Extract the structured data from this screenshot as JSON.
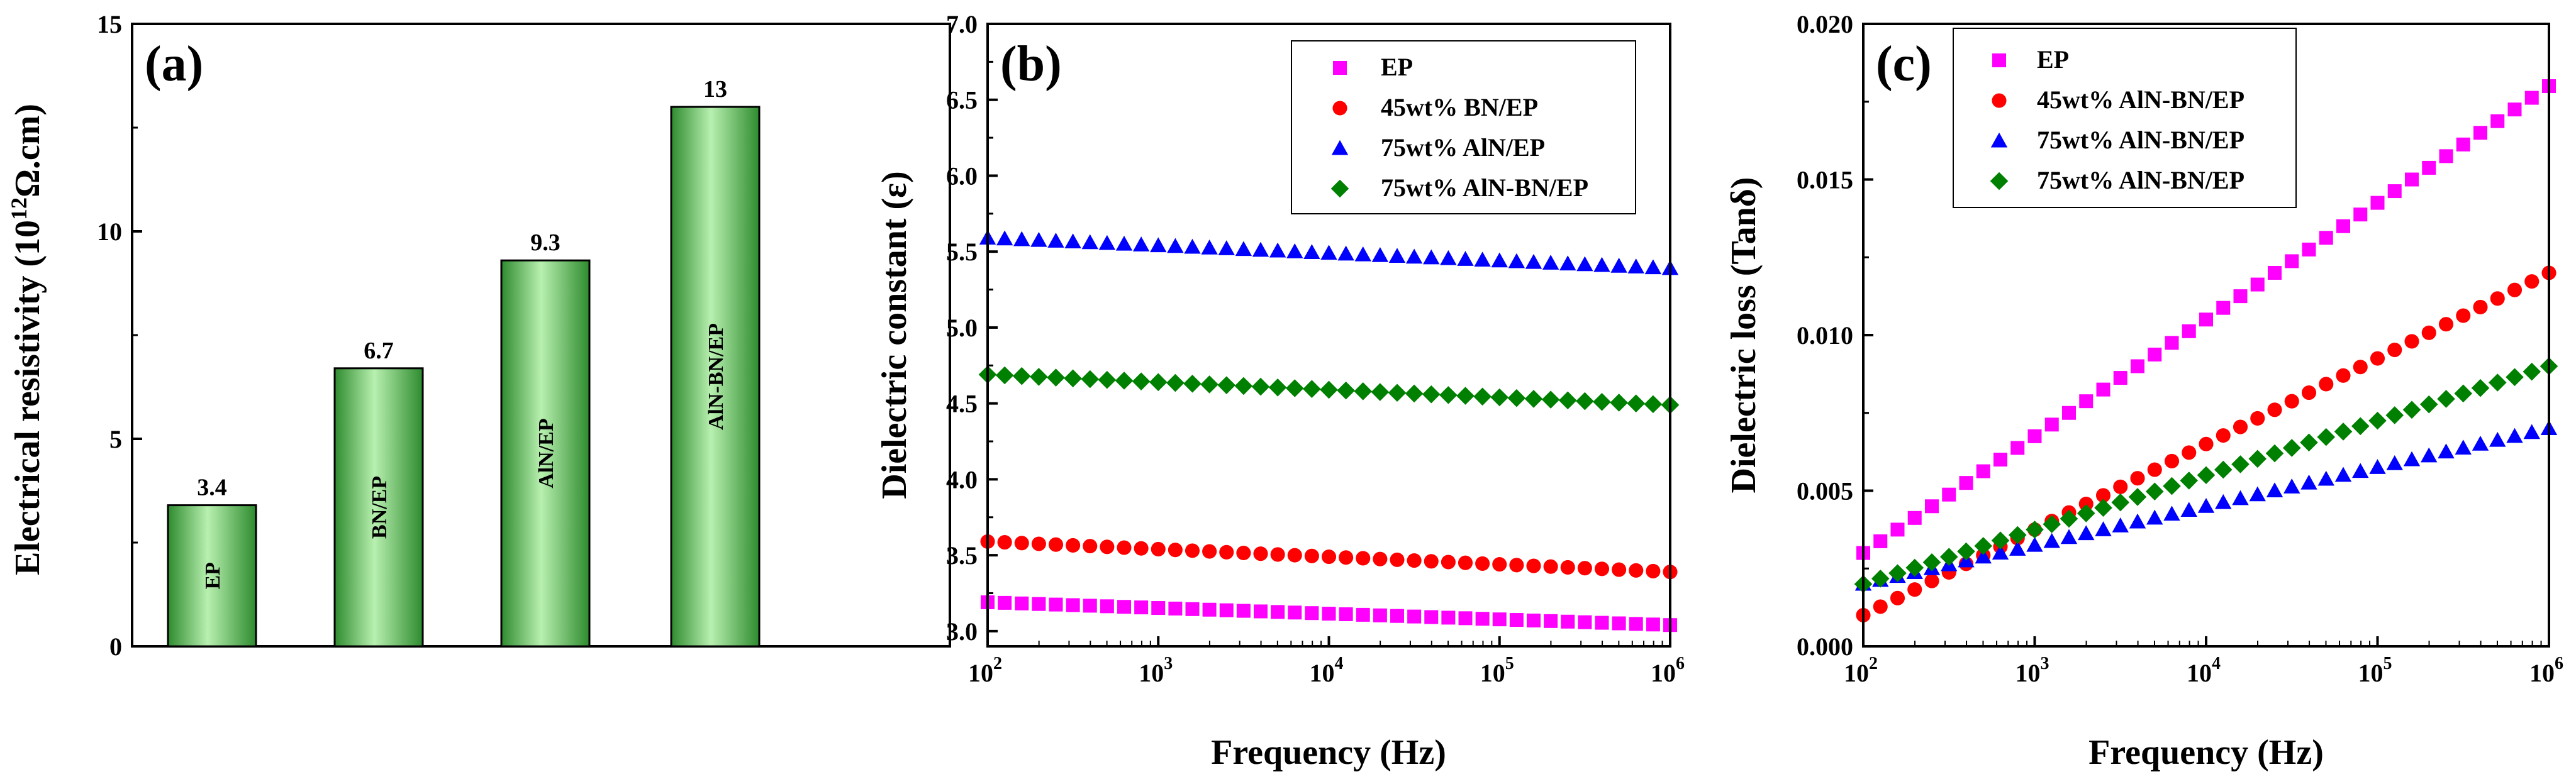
{
  "chart_data": [
    {
      "panel": "(a)",
      "type": "bar",
      "ylabel_main": "Electrical resistivity (10",
      "ylabel_exp": "12",
      "ylabel_unit": "Ω.cm)",
      "categories": [
        "EP",
        "BN/EP",
        "AlN/EP",
        "AlN-BN/EP"
      ],
      "values": [
        3.4,
        6.7,
        9.3,
        13
      ],
      "value_labels": [
        "3.4",
        "6.7",
        "9.3",
        "13"
      ],
      "ylim": [
        0,
        15
      ],
      "yticks": [
        "0",
        "5",
        "10",
        "15"
      ],
      "bar_color": "#44c044"
    },
    {
      "panel": "(b)",
      "type": "scatter",
      "xlabel": "Frequency (Hz)",
      "ylabel": "Dielectric constant (ε)",
      "xscale": "log",
      "xlim": [
        100,
        1000000
      ],
      "xtick_base": "10",
      "xtick_exps": [
        "2",
        "3",
        "4",
        "5",
        "6"
      ],
      "ylim": [
        2.9,
        7.0
      ],
      "yticks": [
        "3.0",
        "3.5",
        "4.0",
        "4.5",
        "5.0",
        "5.5",
        "6.0",
        "6.5",
        "7.0"
      ],
      "legend_position": "top-right",
      "series": [
        {
          "name": "EP",
          "marker": "square",
          "color": "#ff00ff",
          "start": 3.19,
          "end": 3.04
        },
        {
          "name": "45wt% BN/EP",
          "marker": "circle",
          "color": "#ff0000",
          "start": 3.59,
          "end": 3.39
        },
        {
          "name": "75wt% AlN/EP",
          "marker": "triangle",
          "color": "#0000ff",
          "start": 5.59,
          "end": 5.39
        },
        {
          "name": "75wt% AlN-BN/EP",
          "marker": "diamond",
          "color": "#008000",
          "start": 4.69,
          "end": 4.49
        }
      ]
    },
    {
      "panel": "(c)",
      "type": "scatter",
      "xlabel": "Frequency (Hz)",
      "ylabel": "Dielectric loss (Tanδ)",
      "xscale": "log",
      "xlim": [
        100,
        1000000
      ],
      "xtick_base": "10",
      "xtick_exps": [
        "2",
        "3",
        "4",
        "5",
        "6"
      ],
      "ylim": [
        0.0,
        0.02
      ],
      "yticks": [
        "0.000",
        "0.005",
        "0.010",
        "0.015",
        "0.020"
      ],
      "legend_position": "top-left",
      "series": [
        {
          "name": "EP",
          "marker": "square",
          "color": "#ff00ff",
          "start": 0.003,
          "end": 0.018
        },
        {
          "name": "45wt% AlN-BN/EP",
          "marker": "circle",
          "color": "#ff0000",
          "start": 0.001,
          "end": 0.012
        },
        {
          "name": "75wt% AlN-BN/EP",
          "marker": "triangle",
          "color": "#0000ff",
          "start": 0.002,
          "end": 0.007
        },
        {
          "name": "75wt% AlN-BN/EP",
          "marker": "diamond",
          "color": "#008000",
          "start": 0.002,
          "end": 0.009
        }
      ]
    }
  ]
}
